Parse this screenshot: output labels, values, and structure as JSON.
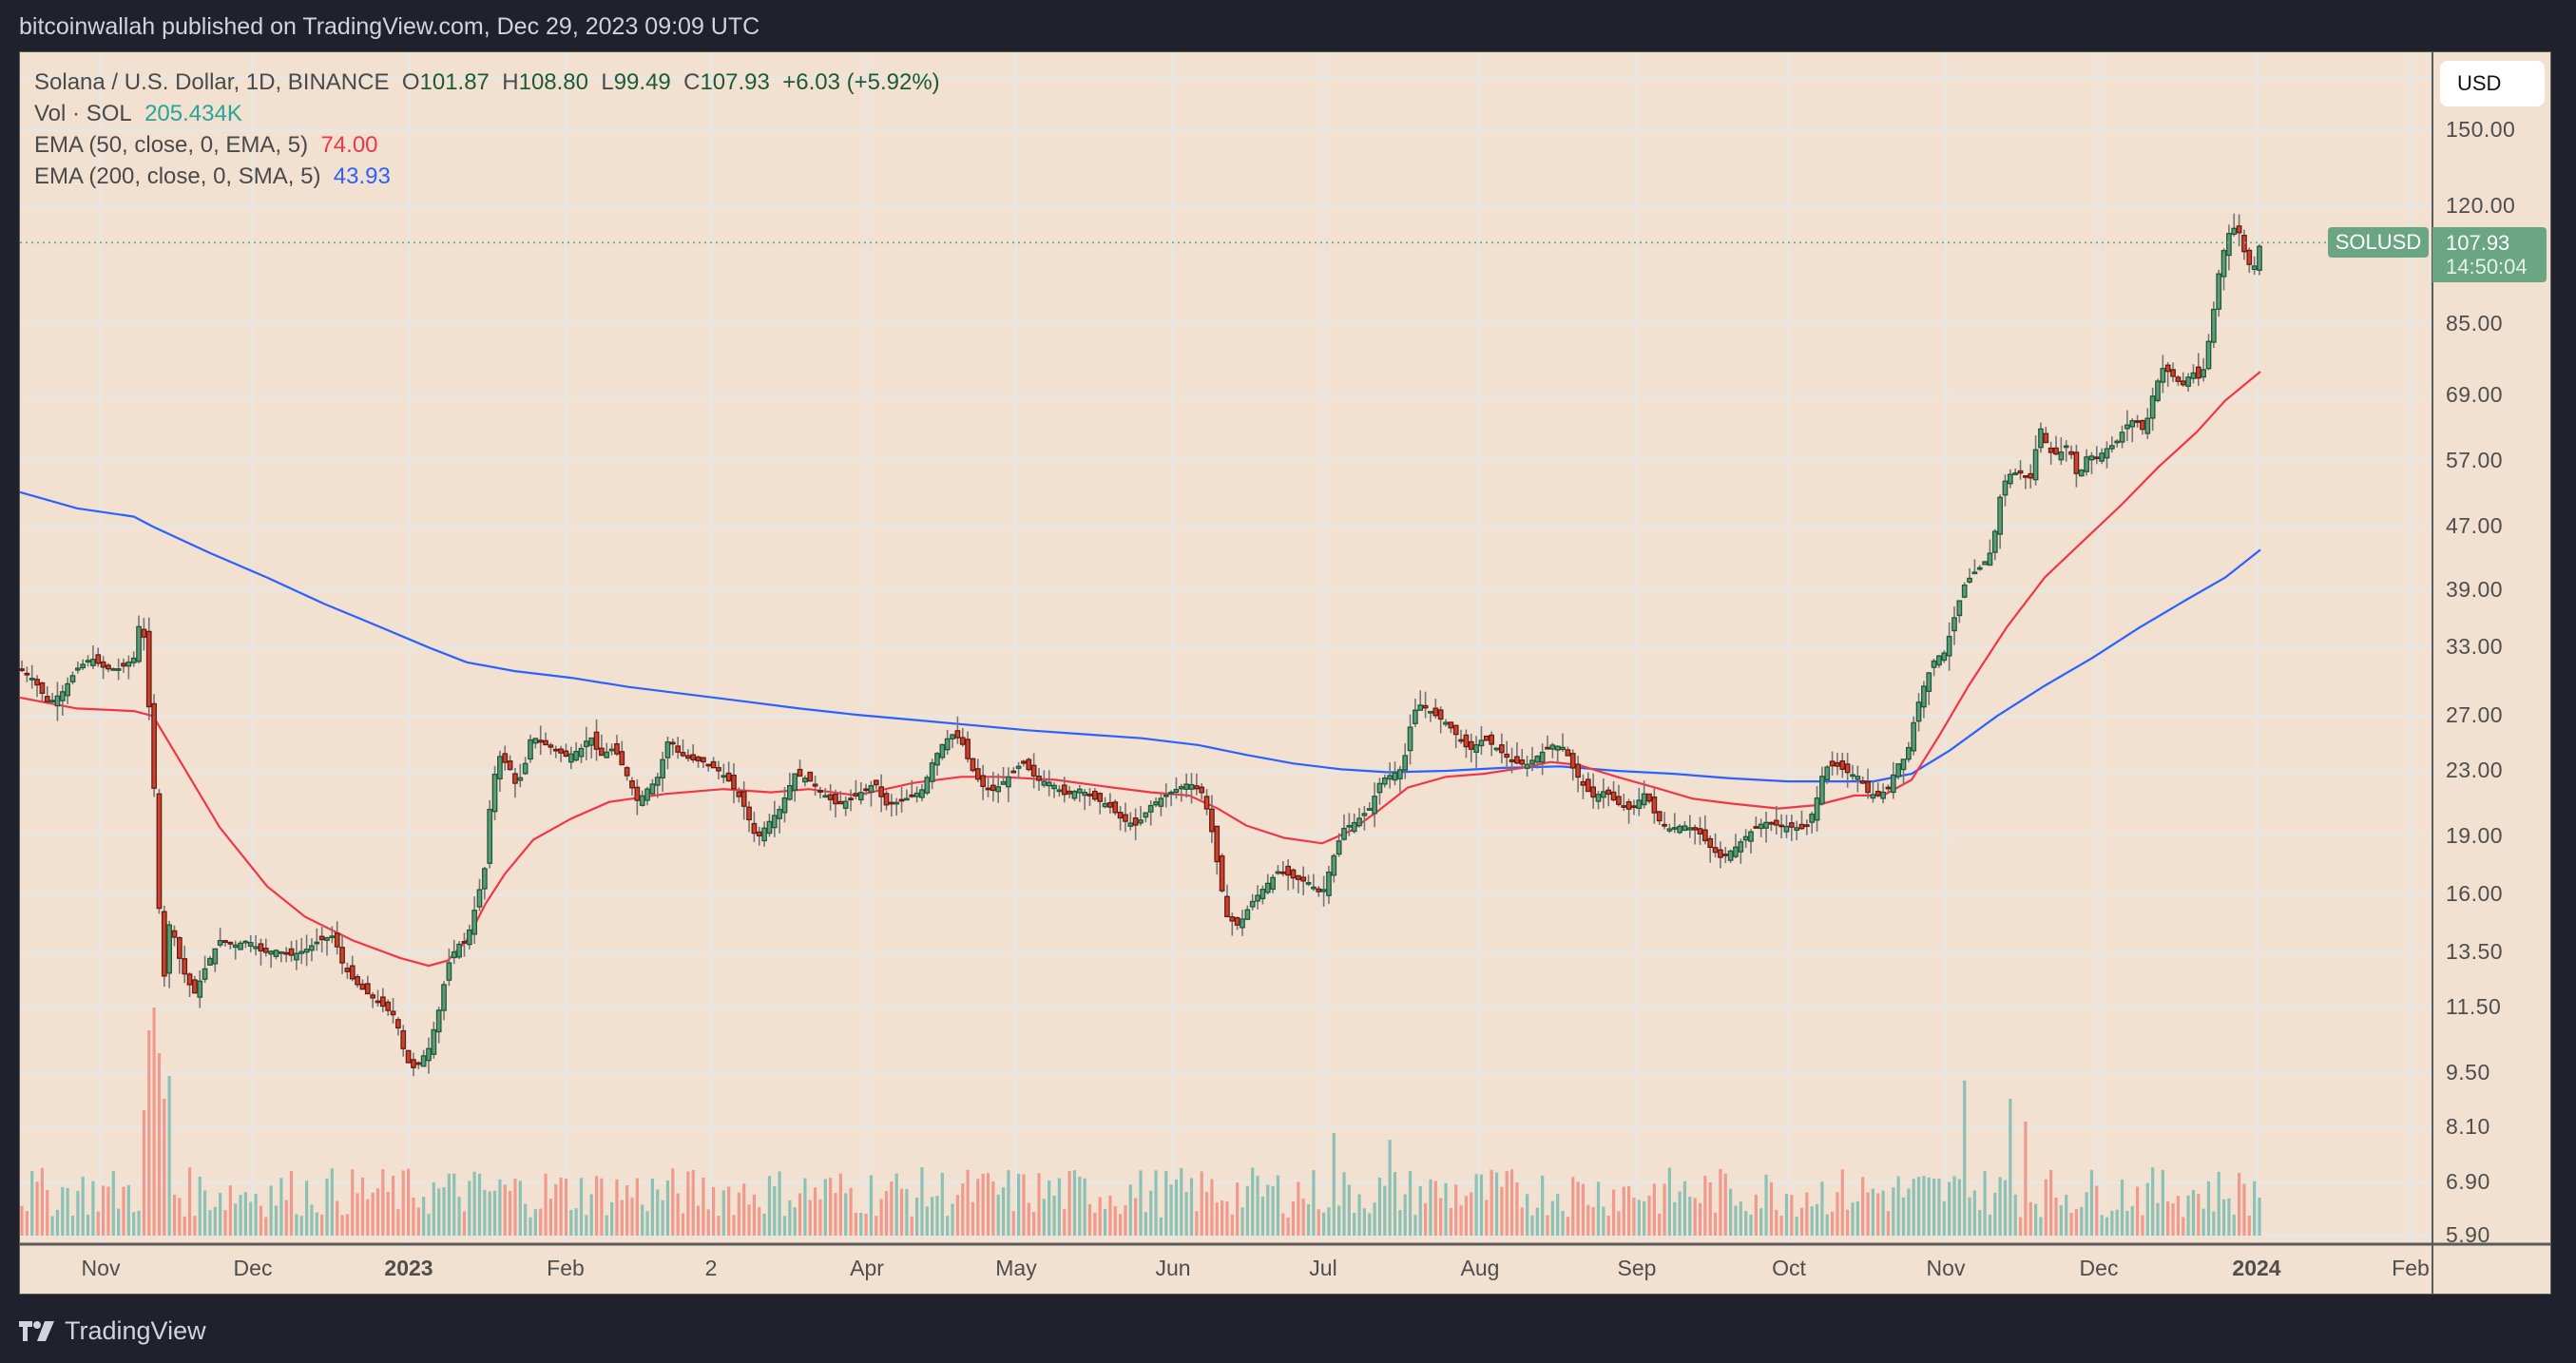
{
  "header": {
    "published": "bitcoinwallah published on TradingView.com, Dec 29, 2023 09:09 UTC"
  },
  "legend": {
    "symbol": "Solana / U.S. Dollar, 1D, BINANCE",
    "o_label": "O",
    "o": "101.87",
    "h_label": "H",
    "h": "108.80",
    "l_label": "L",
    "l": "99.49",
    "c_label": "C",
    "c": "107.93",
    "change": "+6.03 (+5.92%)",
    "vol_label": "Vol · SOL",
    "vol": "205.434K",
    "ema50_label": "EMA (50, close, 0, EMA, 5)",
    "ema50": "74.00",
    "ema200_label": "EMA (200, close, 0, SMA, 5)",
    "ema200": "43.93"
  },
  "currency_button": "USD",
  "last_price": {
    "symbol": "SOLUSD",
    "price": "107.93",
    "countdown": "14:50:04"
  },
  "footer": {
    "brand": "TradingView"
  },
  "colors": {
    "up_fill": "#5d9a78",
    "up_border": "#1e5a38",
    "down_fill": "#c9442f",
    "down_border": "#6b1a12",
    "wick": "#757575",
    "ema50": "#f23645",
    "ema200": "#2962ff",
    "vol_up": "#8cc2b5",
    "vol_down": "#f0998c",
    "grid": "#e8e6e3",
    "bg": "#f2e0d0",
    "page": "#1f222d"
  },
  "chart_data": {
    "type": "candlestick",
    "title": "Solana / U.S. Dollar, 1D, BINANCE",
    "scale": "log",
    "ylabel": "USD",
    "y_ticks": [
      "150.00",
      "120.00",
      "85.00",
      "69.00",
      "57.00",
      "47.00",
      "39.00",
      "33.00",
      "27.00",
      "23.00",
      "19.00",
      "16.00",
      "13.50",
      "11.50",
      "9.50",
      "8.10",
      "6.90",
      "5.90"
    ],
    "x_ticks": [
      {
        "label": "Nov",
        "x": 106,
        "bold": false
      },
      {
        "label": "Dec",
        "x": 266,
        "bold": false
      },
      {
        "label": "2023",
        "x": 430,
        "bold": true
      },
      {
        "label": "Feb",
        "x": 595,
        "bold": false
      },
      {
        "label": "2",
        "x": 748,
        "bold": false
      },
      {
        "label": "Apr",
        "x": 912,
        "bold": false
      },
      {
        "label": "May",
        "x": 1069,
        "bold": false
      },
      {
        "label": "Jun",
        "x": 1234,
        "bold": false
      },
      {
        "label": "Jul",
        "x": 1392,
        "bold": false
      },
      {
        "label": "Aug",
        "x": 1557,
        "bold": false
      },
      {
        "label": "Sep",
        "x": 1722,
        "bold": false
      },
      {
        "label": "Oct",
        "x": 1882,
        "bold": false
      },
      {
        "label": "Nov",
        "x": 2047,
        "bold": false
      },
      {
        "label": "Dec",
        "x": 2208,
        "bold": false
      },
      {
        "label": "2024",
        "x": 2374,
        "bold": true
      },
      {
        "label": "Feb",
        "x": 2536,
        "bold": false
      }
    ],
    "close_path": [
      [
        0,
        31
      ],
      [
        15,
        30
      ],
      [
        30,
        28
      ],
      [
        45,
        29
      ],
      [
        60,
        31
      ],
      [
        75,
        32
      ],
      [
        90,
        31
      ],
      [
        105,
        31
      ],
      [
        120,
        32
      ],
      [
        128,
        37
      ],
      [
        134,
        30
      ],
      [
        142,
        21
      ],
      [
        150,
        12
      ],
      [
        158,
        15
      ],
      [
        166,
        13.5
      ],
      [
        175,
        12.5
      ],
      [
        184,
        12
      ],
      [
        196,
        13
      ],
      [
        210,
        14
      ],
      [
        226,
        13.8
      ],
      [
        240,
        14
      ],
      [
        256,
        13.5
      ],
      [
        270,
        13.6
      ],
      [
        285,
        13.4
      ],
      [
        300,
        13.6
      ],
      [
        315,
        14
      ],
      [
        330,
        14.2
      ],
      [
        340,
        13
      ],
      [
        352,
        12.4
      ],
      [
        365,
        12
      ],
      [
        380,
        11.6
      ],
      [
        395,
        11.2
      ],
      [
        405,
        10
      ],
      [
        412,
        9.6
      ],
      [
        420,
        9.8
      ],
      [
        430,
        10.2
      ],
      [
        440,
        11.3
      ],
      [
        450,
        13
      ],
      [
        460,
        13.8
      ],
      [
        470,
        14
      ],
      [
        480,
        15.6
      ],
      [
        490,
        17.5
      ],
      [
        496,
        22
      ],
      [
        505,
        24
      ],
      [
        515,
        23.2
      ],
      [
        522,
        22
      ],
      [
        530,
        23
      ],
      [
        538,
        25.5
      ],
      [
        548,
        25
      ],
      [
        560,
        24.6
      ],
      [
        575,
        24
      ],
      [
        590,
        24.5
      ],
      [
        600,
        25.5
      ],
      [
        610,
        24
      ],
      [
        625,
        24.6
      ],
      [
        640,
        22.5
      ],
      [
        650,
        21
      ],
      [
        660,
        21.8
      ],
      [
        670,
        22.4
      ],
      [
        683,
        25.4
      ],
      [
        693,
        24.2
      ],
      [
        705,
        23.8
      ],
      [
        720,
        23.6
      ],
      [
        735,
        23
      ],
      [
        745,
        22.4
      ],
      [
        760,
        21
      ],
      [
        775,
        18.8
      ],
      [
        785,
        19.6
      ],
      [
        800,
        20.6
      ],
      [
        815,
        22.8
      ],
      [
        830,
        22.4
      ],
      [
        845,
        21.5
      ],
      [
        860,
        20.8
      ],
      [
        875,
        21.2
      ],
      [
        890,
        21.8
      ],
      [
        900,
        22.2
      ],
      [
        910,
        20.8
      ],
      [
        925,
        21
      ],
      [
        940,
        21.4
      ],
      [
        950,
        21.8
      ],
      [
        960,
        23.6
      ],
      [
        970,
        24.8
      ],
      [
        980,
        25.6
      ],
      [
        990,
        25.2
      ],
      [
        1000,
        23.3
      ],
      [
        1012,
        22
      ],
      [
        1025,
        21.7
      ],
      [
        1040,
        22.6
      ],
      [
        1055,
        23.6
      ],
      [
        1070,
        22.4
      ],
      [
        1085,
        22.2
      ],
      [
        1100,
        21.4
      ],
      [
        1115,
        21.8
      ],
      [
        1130,
        21.2
      ],
      [
        1145,
        20.8
      ],
      [
        1160,
        19.9
      ],
      [
        1175,
        19.6
      ],
      [
        1190,
        20.8
      ],
      [
        1205,
        21.4
      ],
      [
        1220,
        21.9
      ],
      [
        1230,
        22.2
      ],
      [
        1245,
        21.5
      ],
      [
        1255,
        19
      ],
      [
        1262,
        16.8
      ],
      [
        1270,
        15
      ],
      [
        1282,
        14.6
      ],
      [
        1295,
        15.6
      ],
      [
        1310,
        16.4
      ],
      [
        1325,
        17.2
      ],
      [
        1340,
        16.8
      ],
      [
        1355,
        16.6
      ],
      [
        1370,
        16
      ],
      [
        1380,
        17.6
      ],
      [
        1392,
        19.4
      ],
      [
        1405,
        19.8
      ],
      [
        1420,
        20.6
      ],
      [
        1432,
        22.4
      ],
      [
        1445,
        22.8
      ],
      [
        1455,
        23.2
      ],
      [
        1462,
        26
      ],
      [
        1470,
        28
      ],
      [
        1480,
        27.6
      ],
      [
        1490,
        27
      ],
      [
        1502,
        26.4
      ],
      [
        1515,
        25.2
      ],
      [
        1525,
        24.4
      ],
      [
        1540,
        25.3
      ],
      [
        1555,
        24.5
      ],
      [
        1570,
        23.6
      ],
      [
        1585,
        23.4
      ],
      [
        1600,
        24.2
      ],
      [
        1612,
        24.8
      ],
      [
        1625,
        24.6
      ],
      [
        1635,
        23
      ],
      [
        1645,
        22
      ],
      [
        1655,
        21.3
      ],
      [
        1668,
        21.7
      ],
      [
        1680,
        20.9
      ],
      [
        1695,
        20.5
      ],
      [
        1710,
        21.6
      ],
      [
        1722,
        20
      ],
      [
        1735,
        19.4
      ],
      [
        1750,
        19.6
      ],
      [
        1765,
        19.3
      ],
      [
        1778,
        18.4
      ],
      [
        1790,
        17.8
      ],
      [
        1805,
        18.4
      ],
      [
        1820,
        19.2
      ],
      [
        1835,
        19.8
      ],
      [
        1850,
        19.6
      ],
      [
        1865,
        19.5
      ],
      [
        1878,
        19.4
      ],
      [
        1888,
        20.6
      ],
      [
        1898,
        23.2
      ],
      [
        1910,
        23.4
      ],
      [
        1925,
        22.8
      ],
      [
        1935,
        22.6
      ],
      [
        1945,
        21.5
      ],
      [
        1955,
        21.4
      ],
      [
        1965,
        21.8
      ],
      [
        1975,
        23.4
      ],
      [
        1985,
        24
      ],
      [
        1995,
        27.5
      ],
      [
        2005,
        30
      ],
      [
        2015,
        32
      ],
      [
        2025,
        32.5
      ],
      [
        2035,
        36
      ],
      [
        2045,
        39.5
      ],
      [
        2055,
        41
      ],
      [
        2065,
        42
      ],
      [
        2075,
        44
      ],
      [
        2085,
        53
      ],
      [
        2095,
        55
      ],
      [
        2105,
        55
      ],
      [
        2115,
        54
      ],
      [
        2125,
        63
      ],
      [
        2135,
        58.5
      ],
      [
        2145,
        58
      ],
      [
        2155,
        60
      ],
      [
        2165,
        54
      ],
      [
        2175,
        58
      ],
      [
        2185,
        57.5
      ],
      [
        2195,
        59
      ],
      [
        2205,
        60
      ],
      [
        2215,
        63
      ],
      [
        2225,
        64.5
      ],
      [
        2235,
        62
      ],
      [
        2245,
        70
      ],
      [
        2255,
        75
      ],
      [
        2265,
        73
      ],
      [
        2275,
        71
      ],
      [
        2285,
        74
      ],
      [
        2295,
        72
      ],
      [
        2305,
        84
      ],
      [
        2315,
        102
      ],
      [
        2325,
        112
      ],
      [
        2333,
        113
      ],
      [
        2341,
        104
      ],
      [
        2349,
        99
      ],
      [
        2357,
        107.93
      ]
    ],
    "ema50_path": [
      [
        0,
        28.5
      ],
      [
        60,
        27.6
      ],
      [
        120,
        27.4
      ],
      [
        140,
        27
      ],
      [
        170,
        23.5
      ],
      [
        210,
        19.5
      ],
      [
        260,
        16.4
      ],
      [
        300,
        15
      ],
      [
        350,
        14
      ],
      [
        400,
        13.3
      ],
      [
        430,
        13
      ],
      [
        450,
        13.2
      ],
      [
        470,
        14
      ],
      [
        490,
        15.6
      ],
      [
        510,
        17
      ],
      [
        540,
        18.8
      ],
      [
        580,
        20
      ],
      [
        620,
        21
      ],
      [
        680,
        21.5
      ],
      [
        740,
        21.8
      ],
      [
        790,
        21.6
      ],
      [
        830,
        21.8
      ],
      [
        880,
        21.4
      ],
      [
        940,
        22.2
      ],
      [
        990,
        22.6
      ],
      [
        1030,
        22.6
      ],
      [
        1090,
        22.4
      ],
      [
        1150,
        21.9
      ],
      [
        1190,
        21.6
      ],
      [
        1230,
        21.4
      ],
      [
        1260,
        20.6
      ],
      [
        1290,
        19.6
      ],
      [
        1330,
        18.9
      ],
      [
        1370,
        18.6
      ],
      [
        1400,
        19.3
      ],
      [
        1430,
        20.5
      ],
      [
        1460,
        21.9
      ],
      [
        1500,
        22.6
      ],
      [
        1540,
        22.8
      ],
      [
        1580,
        23.2
      ],
      [
        1610,
        23.6
      ],
      [
        1640,
        23.4
      ],
      [
        1680,
        22.6
      ],
      [
        1720,
        21.9
      ],
      [
        1760,
        21.2
      ],
      [
        1800,
        20.9
      ],
      [
        1850,
        20.6
      ],
      [
        1890,
        20.8
      ],
      [
        1930,
        21.4
      ],
      [
        1960,
        21.4
      ],
      [
        1990,
        22.4
      ],
      [
        2020,
        25.6
      ],
      [
        2050,
        29.5
      ],
      [
        2090,
        35
      ],
      [
        2130,
        40.5
      ],
      [
        2170,
        45
      ],
      [
        2210,
        50
      ],
      [
        2250,
        56
      ],
      [
        2290,
        62
      ],
      [
        2320,
        68
      ],
      [
        2357,
        74
      ]
    ],
    "ema200_path": [
      [
        0,
        52
      ],
      [
        60,
        49.6
      ],
      [
        120,
        48.4
      ],
      [
        140,
        47
      ],
      [
        200,
        43.5
      ],
      [
        260,
        40.5
      ],
      [
        320,
        37.5
      ],
      [
        380,
        35
      ],
      [
        430,
        33
      ],
      [
        470,
        31.6
      ],
      [
        520,
        30.8
      ],
      [
        580,
        30.2
      ],
      [
        640,
        29.4
      ],
      [
        700,
        28.8
      ],
      [
        760,
        28.2
      ],
      [
        820,
        27.6
      ],
      [
        880,
        27.1
      ],
      [
        940,
        26.7
      ],
      [
        1000,
        26.3
      ],
      [
        1060,
        25.9
      ],
      [
        1120,
        25.6
      ],
      [
        1180,
        25.3
      ],
      [
        1240,
        24.8
      ],
      [
        1290,
        24.1
      ],
      [
        1340,
        23.5
      ],
      [
        1390,
        23.1
      ],
      [
        1440,
        22.9
      ],
      [
        1500,
        23
      ],
      [
        1560,
        23.2
      ],
      [
        1620,
        23.3
      ],
      [
        1680,
        23
      ],
      [
        1740,
        22.8
      ],
      [
        1800,
        22.5
      ],
      [
        1860,
        22.3
      ],
      [
        1900,
        22.3
      ],
      [
        1950,
        22.3
      ],
      [
        1990,
        22.8
      ],
      [
        2030,
        24.4
      ],
      [
        2080,
        27
      ],
      [
        2130,
        29.5
      ],
      [
        2180,
        32
      ],
      [
        2230,
        35
      ],
      [
        2280,
        38
      ],
      [
        2320,
        40.5
      ],
      [
        2357,
        43.93
      ]
    ],
    "volume_spikes": [
      [
        128,
        0.55
      ],
      [
        134,
        0.9
      ],
      [
        140,
        1.0
      ],
      [
        146,
        0.8
      ],
      [
        152,
        0.6
      ],
      [
        157,
        0.7
      ],
      [
        1262,
        0.65
      ],
      [
        1382,
        0.45
      ],
      [
        1440,
        0.42
      ],
      [
        1460,
        0.48
      ],
      [
        2046,
        0.68
      ],
      [
        2095,
        0.6
      ],
      [
        2102,
        0.55
      ],
      [
        2110,
        0.5
      ]
    ],
    "last_price_y": 107.93
  }
}
